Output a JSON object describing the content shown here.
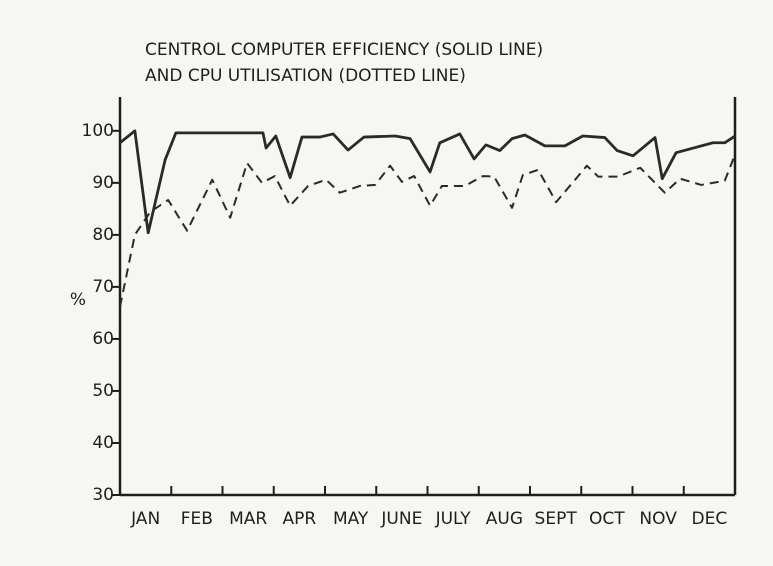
{
  "chart_data": {
    "type": "line",
    "title": "CENTROL COMPUTER EFFICIENCY (SOLID LINE)",
    "subtitle": "AND CPU UTILISATION (DOTTED LINE)",
    "y_label": "%",
    "categories": [
      "JAN",
      "FEB",
      "MAR",
      "APR",
      "MAY",
      "JUNE",
      "JULY",
      "AUG",
      "SEPT",
      "OCT",
      "NOV",
      "DEC"
    ],
    "xlim": [
      0,
      12
    ],
    "ylim": [
      30,
      106.5
    ],
    "yticks": [
      30,
      40,
      50,
      60,
      70,
      80,
      90,
      100
    ],
    "series": [
      {
        "style": "solid",
        "color": "#2a2a2a",
        "x": [
          0,
          0.29,
          0.55,
          0.88,
          1.09,
          1.99,
          2.79,
          2.85,
          3.04,
          3.32,
          3.55,
          3.9,
          4.16,
          4.45,
          4.76,
          5.37,
          5.66,
          6.05,
          6.24,
          6.63,
          6.91,
          7.14,
          7.41,
          7.65,
          7.9,
          8.29,
          8.68,
          9.03,
          9.46,
          9.7,
          10.01,
          10.44,
          10.58,
          10.85,
          11.57,
          11.8,
          12
        ],
        "values": [
          97.7,
          100,
          80.4,
          94.4,
          99.6,
          99.6,
          99.6,
          96.7,
          99,
          91,
          98.8,
          98.8,
          99.4,
          96.3,
          98.8,
          99,
          98.5,
          92.1,
          97.7,
          99.4,
          94.6,
          97.3,
          96.2,
          98.5,
          99.2,
          97.1,
          97.1,
          99,
          98.7,
          96.2,
          95.2,
          98.7,
          90.8,
          95.8,
          97.7,
          97.7,
          99
        ]
      },
      {
        "style": "dashed",
        "color": "#2a2a2a",
        "x": [
          0,
          0.29,
          0.59,
          0.94,
          1.31,
          1.8,
          2.15,
          2.48,
          2.77,
          3.02,
          3.32,
          3.67,
          4.02,
          4.29,
          4.68,
          4.98,
          5.27,
          5.5,
          5.74,
          6.05,
          6.28,
          6.73,
          7.08,
          7.3,
          7.65,
          7.86,
          8.16,
          8.51,
          8.88,
          9.11,
          9.33,
          9.72,
          10.15,
          10.63,
          10.93,
          11.34,
          11.8,
          12
        ],
        "values": [
          66.2,
          80,
          84.4,
          86.7,
          80.8,
          90.6,
          83.3,
          93.8,
          90,
          91.3,
          85.6,
          89.4,
          90.6,
          88.1,
          89.4,
          89.6,
          93.3,
          90.2,
          91.3,
          85.6,
          89.4,
          89.4,
          91.3,
          91.2,
          85.2,
          91.5,
          92.5,
          86.3,
          90.6,
          93.3,
          91.2,
          91.2,
          92.9,
          88.1,
          90.8,
          89.6,
          90.4,
          95.4
        ]
      }
    ]
  }
}
